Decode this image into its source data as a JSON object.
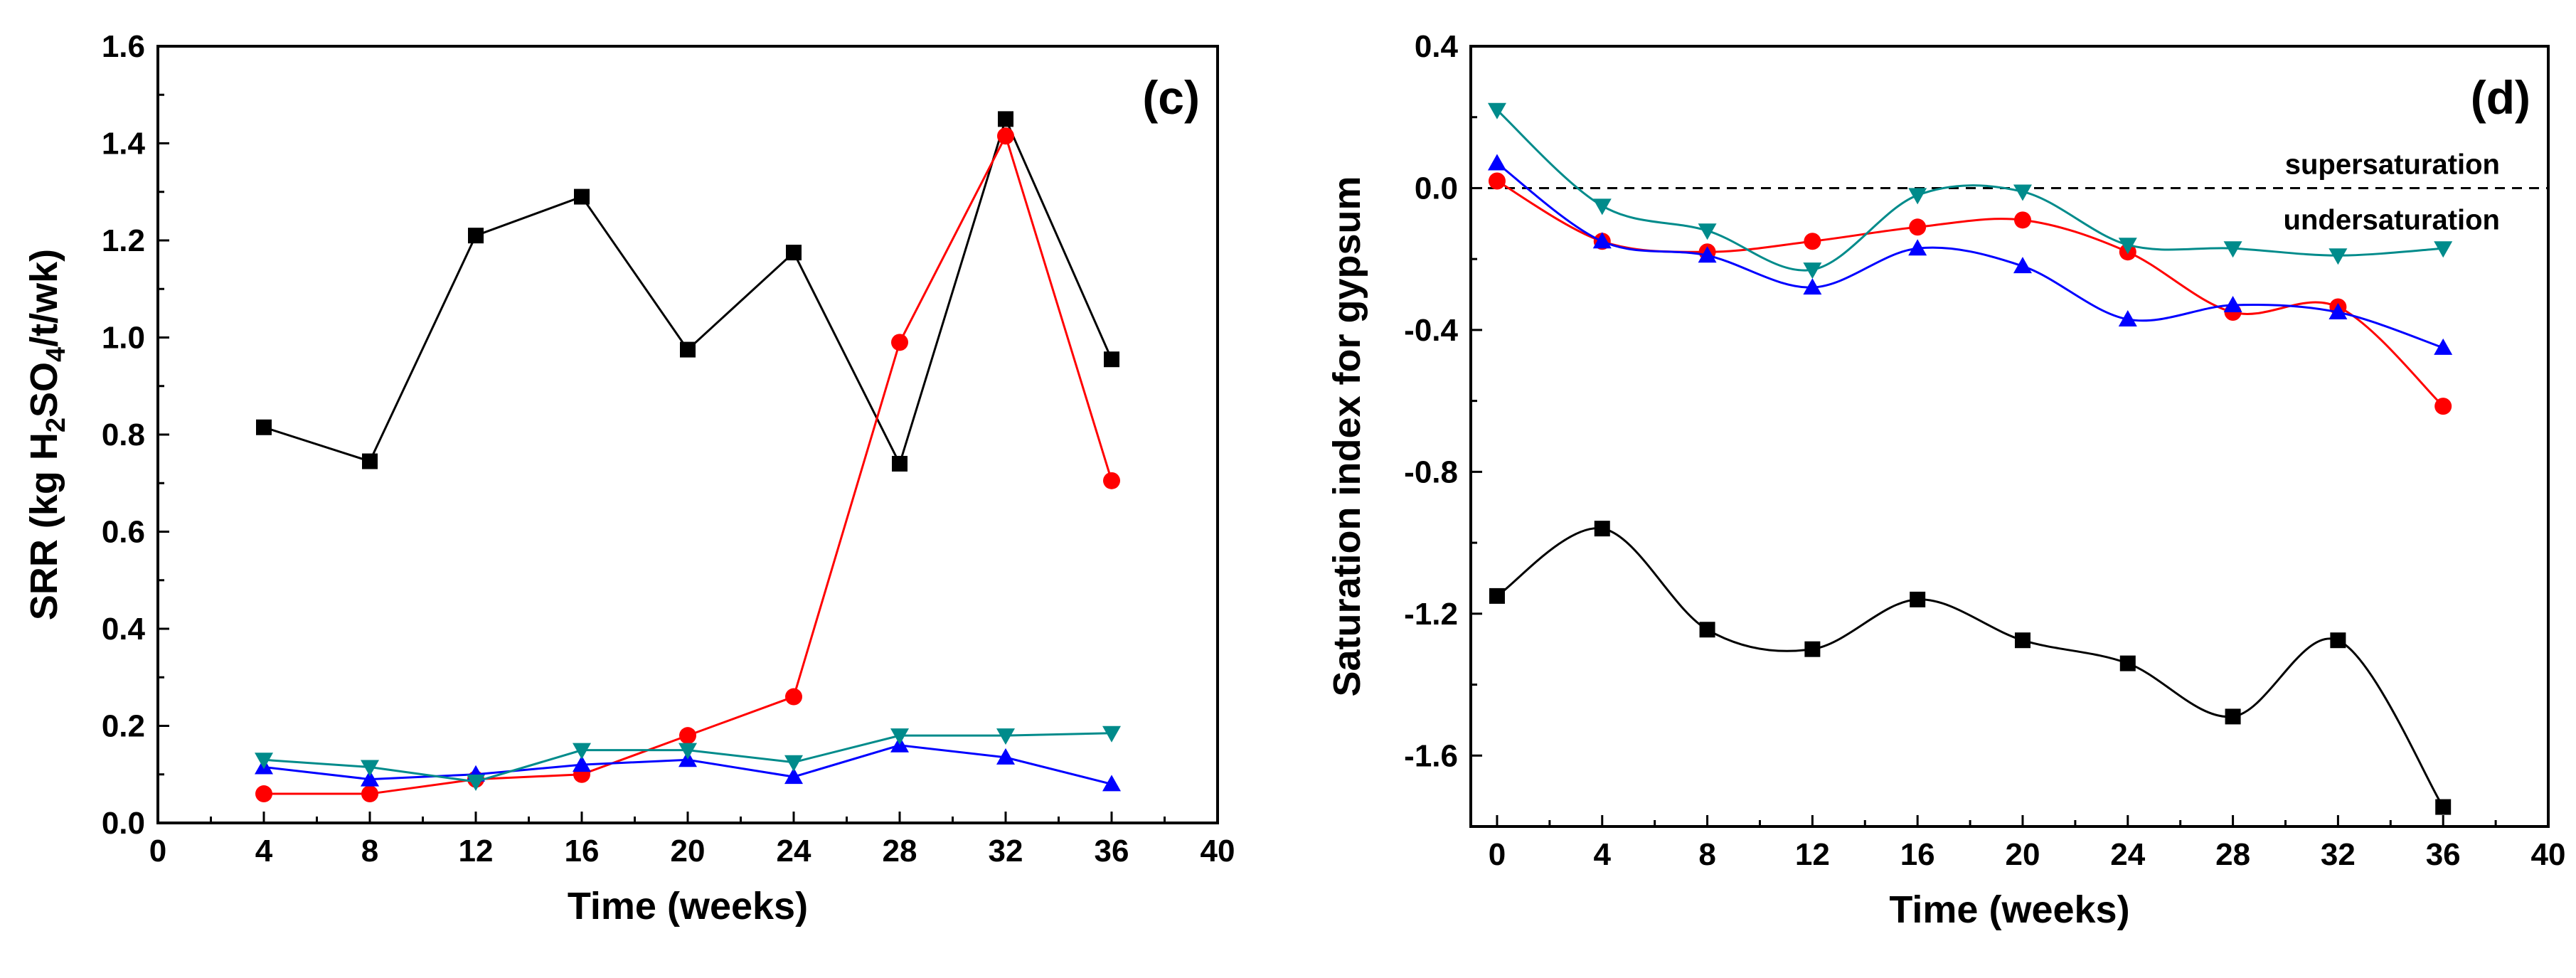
{
  "chart_data": [
    {
      "type": "line",
      "panel_label": "(c)",
      "xlabel": "Time (weeks)",
      "ylabel_parts": [
        "SRR (kg H",
        "2",
        "SO",
        "4",
        "/t/wk)"
      ],
      "xlim": [
        0,
        40
      ],
      "ylim": [
        0,
        1.6
      ],
      "xticks": [
        0,
        4,
        8,
        12,
        16,
        20,
        24,
        28,
        32,
        36,
        40
      ],
      "yticks": [
        0.0,
        0.2,
        0.4,
        0.6,
        0.8,
        1.0,
        1.2,
        1.4,
        1.6
      ],
      "xtick_labels": [
        "0",
        "4",
        "8",
        "12",
        "16",
        "20",
        "24",
        "28",
        "32",
        "36",
        "40"
      ],
      "ytick_labels": [
        "0.0",
        "0.2",
        "0.4",
        "0.6",
        "0.8",
        "1.0",
        "1.2",
        "1.4",
        "1.6"
      ],
      "smooth": false,
      "series": [
        {
          "name": "black-squares",
          "color": "#000000",
          "marker": "square",
          "x": [
            4,
            8,
            12,
            16,
            20,
            24,
            28,
            32,
            36
          ],
          "y": [
            0.815,
            0.745,
            1.21,
            1.29,
            0.975,
            1.175,
            0.74,
            1.45,
            0.955
          ]
        },
        {
          "name": "red-circles",
          "color": "#ff0000",
          "marker": "circle",
          "x": [
            4,
            8,
            12,
            16,
            20,
            24,
            28,
            32,
            36
          ],
          "y": [
            0.06,
            0.06,
            0.09,
            0.1,
            0.18,
            0.26,
            0.99,
            1.415,
            0.705
          ]
        },
        {
          "name": "blue-up-triangles",
          "color": "#0000ff",
          "marker": "triangle-up",
          "x": [
            4,
            8,
            12,
            16,
            20,
            24,
            28,
            32,
            36
          ],
          "y": [
            0.115,
            0.09,
            0.1,
            0.12,
            0.13,
            0.095,
            0.16,
            0.135,
            0.08
          ]
        },
        {
          "name": "teal-down-triangles",
          "color": "#008b8b",
          "marker": "triangle-down",
          "x": [
            4,
            8,
            12,
            16,
            20,
            24,
            28,
            32,
            36
          ],
          "y": [
            0.13,
            0.115,
            0.085,
            0.15,
            0.15,
            0.125,
            0.18,
            0.18,
            0.185
          ]
        }
      ]
    },
    {
      "type": "line",
      "panel_label": "(d)",
      "xlabel": "Time (weeks)",
      "ylabel": "Saturation index for gypsum",
      "xlim": [
        -1,
        40
      ],
      "ylim": [
        -1.8,
        0.4
      ],
      "xticks": [
        0,
        4,
        8,
        12,
        16,
        20,
        24,
        28,
        32,
        36,
        40
      ],
      "yticks": [
        0.4,
        0.0,
        -0.4,
        -0.8,
        -1.2,
        -1.6
      ],
      "xtick_labels": [
        "0",
        "4",
        "8",
        "12",
        "16",
        "20",
        "24",
        "28",
        "32",
        "36",
        "40"
      ],
      "ytick_labels": [
        "0.4",
        "0.0",
        "-0.4",
        "-0.8",
        "-1.2",
        "-1.6"
      ],
      "smooth": true,
      "reference_line": {
        "y": 0.0,
        "style": "dashed"
      },
      "annotations": [
        "supersaturation",
        "undersaturation"
      ],
      "series": [
        {
          "name": "black-squares",
          "color": "#000000",
          "marker": "square",
          "x": [
            0,
            4,
            8,
            12,
            16,
            20,
            24,
            28,
            32,
            36
          ],
          "y": [
            -1.15,
            -0.96,
            -1.245,
            -1.3,
            -1.16,
            -1.275,
            -1.34,
            -1.49,
            -1.275,
            -1.745
          ]
        },
        {
          "name": "red-circles",
          "color": "#ff0000",
          "marker": "circle",
          "x": [
            0,
            4,
            8,
            12,
            16,
            20,
            24,
            28,
            32,
            36
          ],
          "y": [
            0.02,
            -0.15,
            -0.18,
            -0.15,
            -0.11,
            -0.09,
            -0.18,
            -0.35,
            -0.335,
            -0.615
          ]
        },
        {
          "name": "blue-up-triangles",
          "color": "#0000ff",
          "marker": "triangle-up",
          "x": [
            0,
            4,
            8,
            12,
            16,
            20,
            24,
            28,
            32,
            36
          ],
          "y": [
            0.07,
            -0.15,
            -0.19,
            -0.28,
            -0.17,
            -0.22,
            -0.37,
            -0.33,
            -0.35,
            -0.45
          ]
        },
        {
          "name": "teal-down-triangles",
          "color": "#008b8b",
          "marker": "triangle-down",
          "x": [
            0,
            4,
            8,
            12,
            16,
            20,
            24,
            28,
            32,
            36
          ],
          "y": [
            0.22,
            -0.05,
            -0.12,
            -0.23,
            -0.02,
            -0.01,
            -0.16,
            -0.17,
            -0.19,
            -0.17
          ]
        }
      ]
    }
  ]
}
